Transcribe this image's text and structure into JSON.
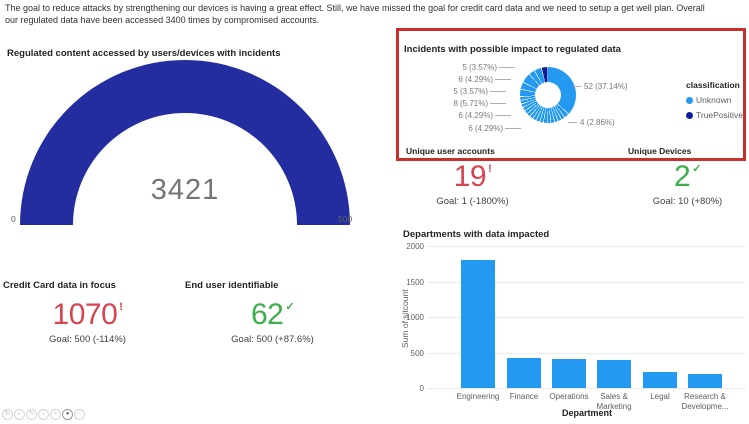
{
  "summary": "The goal to reduce attacks by strengthening our devices is having a great effect. Still, we have missed the goal for credit card data and we need to setup a get well plan. Overall our regulated data have been accessed 3400 times by compromised accounts.",
  "colors": {
    "blue": "#2499F2",
    "navy": "#232DA0",
    "navy_dark": "#0C1E99",
    "red": "#D64550",
    "green": "#3BAE49",
    "annotation_red": "#C9302C",
    "title_text": "#252423",
    "axis_text": "#605E5C",
    "gauge_value_text": "#757575"
  },
  "chart_data": [
    {
      "id": "gauge",
      "type": "gauge",
      "title": "Regulated content accessed by users/devices with incidents",
      "value": "3421",
      "min": 0,
      "max": 500,
      "min_label": "0",
      "max_label": "500",
      "fill_color": "#232DA0"
    },
    {
      "id": "donut",
      "type": "pie",
      "title": "Incidents with possible impact to regulated data",
      "total": 140,
      "legend": {
        "title": "classification",
        "position": "right",
        "entries": [
          {
            "label": "Unknown",
            "color": "#2499F2"
          },
          {
            "label": "TruePositive",
            "color": "#0C1E99"
          }
        ]
      },
      "slices_clockwise": [
        {
          "value": 52,
          "label": "52 (37.14%)",
          "series": "Unknown"
        },
        {
          "value": 4,
          "label": "4 (2.86%)",
          "series": "Unknown"
        },
        {
          "value": 48,
          "label": "",
          "series": "Unknown",
          "split_into": 16
        },
        {
          "value": 6,
          "label": "6 (4.29%)",
          "series": "Unknown"
        },
        {
          "value": 6,
          "label": "6 (4.29%)",
          "series": "Unknown"
        },
        {
          "value": 8,
          "label": "8 (5.71%)",
          "series": "Unknown"
        },
        {
          "value": 5,
          "label": "5 (3.57%)",
          "series": "Unknown"
        },
        {
          "value": 6,
          "label": "6 (4.29%)",
          "series": "Unknown"
        },
        {
          "value": 5,
          "label": "5 (3.57%)",
          "series": "TruePositive"
        }
      ]
    },
    {
      "id": "bar",
      "type": "bar",
      "title": "Departments with data impacted",
      "categories": [
        "Engineering",
        "Finance",
        "Operations",
        "Sales &\nMarketing",
        "Legal",
        "Research &\nDevelopme..."
      ],
      "values": [
        1800,
        420,
        410,
        400,
        220,
        195
      ],
      "xlabel": "Department",
      "ylabel": "Sum of sitcount",
      "ylim": [
        0,
        2000
      ],
      "yticks": [
        0,
        500,
        1000,
        1500,
        2000
      ],
      "grid": "horizontal-dotted",
      "bar_color": "#2499F2"
    }
  ],
  "kpis": [
    {
      "title": "Unique user accounts",
      "value": "19",
      "status_icon": "!",
      "status": "bad",
      "goal_text": "Goal: 1 (-1800%)"
    },
    {
      "title": "Unique Devices",
      "value": "2",
      "status_icon": "✓",
      "status": "good",
      "goal_text": "Goal: 10 (+80%)"
    },
    {
      "title": "Credit Card data in focus",
      "value": "1070",
      "status_icon": "!",
      "status": "bad",
      "goal_text": "Goal: 500 (-114%)"
    },
    {
      "title": "End user identifiable",
      "value": "62",
      "status_icon": "✓",
      "status": "good",
      "goal_text": "Goal: 500 (+87.6%)"
    }
  ],
  "toolbar_icons": [
    {
      "name": "history-icon",
      "glyph": "↻"
    },
    {
      "name": "play-icon",
      "glyph": "▹"
    },
    {
      "name": "edit-icon",
      "glyph": "✎"
    },
    {
      "name": "info-icon",
      "glyph": "i"
    },
    {
      "name": "zoom-icon",
      "glyph": "∘"
    },
    {
      "name": "record-icon",
      "glyph": "●"
    },
    {
      "name": "minus-icon",
      "glyph": "−"
    }
  ]
}
